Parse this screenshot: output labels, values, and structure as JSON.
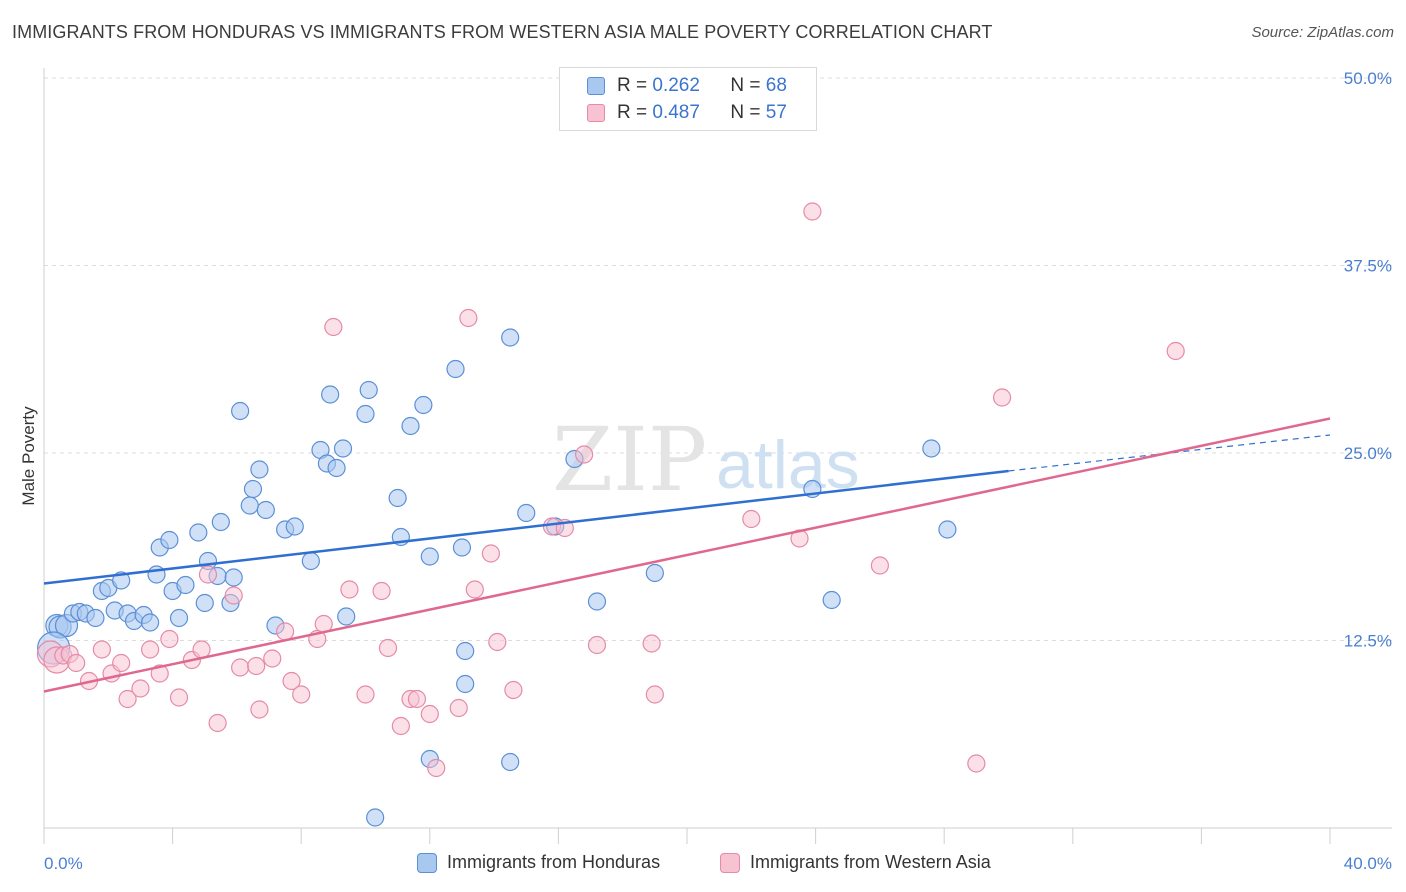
{
  "header": {
    "title": "IMMIGRANTS FROM HONDURAS VS IMMIGRANTS FROM WESTERN ASIA MALE POVERTY CORRELATION CHART",
    "source": "Source: ZipAtlas.com"
  },
  "watermark": {
    "zip": "ZIP",
    "atlas": "atlas"
  },
  "legend": {
    "rows": [
      {
        "r_label": "R =",
        "r_value": "0.262",
        "n_label": "N =",
        "n_value": "68"
      },
      {
        "r_label": "R =",
        "r_value": "0.487",
        "n_label": "N =",
        "n_value": "57"
      }
    ]
  },
  "bottom_legend": {
    "items": [
      {
        "label": "Immigrants from Honduras"
      },
      {
        "label": "Immigrants from Western Asia"
      }
    ]
  },
  "chart_data": {
    "type": "scatter",
    "title": "IMMIGRANTS FROM HONDURAS VS IMMIGRANTS FROM WESTERN ASIA MALE POVERTY CORRELATION CHART",
    "xlabel": "",
    "ylabel": "Male Poverty",
    "xlim": [
      0,
      40
    ],
    "ylim": [
      0,
      50
    ],
    "x_tick_labels": [
      "0.0%",
      "40.0%"
    ],
    "y_ticks": [
      12.5,
      25.0,
      37.5,
      50.0
    ],
    "y_tick_labels": [
      "12.5%",
      "25.0%",
      "37.5%",
      "50.0%"
    ],
    "grid": true,
    "legend_position": "top-center",
    "colors": {
      "honduras_fill": "#a9c8f0",
      "honduras_stroke": "#5b8fd6",
      "honduras_line": "#2f6fd0",
      "western_asia_fill": "#f7c2d2",
      "western_asia_stroke": "#e58aa8",
      "western_asia_line": "#e0688f",
      "tick_text": "#4a7fd0"
    },
    "series": [
      {
        "name": "Immigrants from Honduras",
        "r": 0.262,
        "n": 68,
        "trend": {
          "x": [
            0,
            30
          ],
          "y": [
            16.3,
            23.8
          ],
          "dashed_to": [
            40,
            26.2
          ]
        },
        "points": [
          [
            0.4,
            13.5
          ],
          [
            0.5,
            13.4
          ],
          [
            0.7,
            13.5
          ],
          [
            0.9,
            14.3
          ],
          [
            1.1,
            14.4
          ],
          [
            1.3,
            14.3
          ],
          [
            1.6,
            14.0
          ],
          [
            1.8,
            15.8
          ],
          [
            2.0,
            16.0
          ],
          [
            2.2,
            14.5
          ],
          [
            2.4,
            16.5
          ],
          [
            2.6,
            14.3
          ],
          [
            2.8,
            13.8
          ],
          [
            3.1,
            14.2
          ],
          [
            3.3,
            13.7
          ],
          [
            3.5,
            16.9
          ],
          [
            3.6,
            18.7
          ],
          [
            3.9,
            19.2
          ],
          [
            4.0,
            15.8
          ],
          [
            4.2,
            14.0
          ],
          [
            4.4,
            16.2
          ],
          [
            4.8,
            19.7
          ],
          [
            5.0,
            15.0
          ],
          [
            5.1,
            17.8
          ],
          [
            5.4,
            16.8
          ],
          [
            5.5,
            20.4
          ],
          [
            5.8,
            15.0
          ],
          [
            5.9,
            16.7
          ],
          [
            6.1,
            27.8
          ],
          [
            6.4,
            21.5
          ],
          [
            6.5,
            22.6
          ],
          [
            6.7,
            23.9
          ],
          [
            6.9,
            21.2
          ],
          [
            7.2,
            13.5
          ],
          [
            7.5,
            19.9
          ],
          [
            7.8,
            20.1
          ],
          [
            8.3,
            17.8
          ],
          [
            8.6,
            25.2
          ],
          [
            8.8,
            24.3
          ],
          [
            8.9,
            28.9
          ],
          [
            9.1,
            24.0
          ],
          [
            9.3,
            25.3
          ],
          [
            9.4,
            14.1
          ],
          [
            10.0,
            27.6
          ],
          [
            10.1,
            29.2
          ],
          [
            10.3,
            0.7
          ],
          [
            11.0,
            22.0
          ],
          [
            11.1,
            19.4
          ],
          [
            11.4,
            26.8
          ],
          [
            11.8,
            28.2
          ],
          [
            12.0,
            18.1
          ],
          [
            12.0,
            4.6
          ],
          [
            12.8,
            30.6
          ],
          [
            13.0,
            18.7
          ],
          [
            13.1,
            9.6
          ],
          [
            13.1,
            11.8
          ],
          [
            14.5,
            32.7
          ],
          [
            14.5,
            4.4
          ],
          [
            15.0,
            21.0
          ],
          [
            15.9,
            20.1
          ],
          [
            16.5,
            24.6
          ],
          [
            17.2,
            15.1
          ],
          [
            19.0,
            17.0
          ],
          [
            23.9,
            22.6
          ],
          [
            24.5,
            15.2
          ],
          [
            27.6,
            25.3
          ],
          [
            28.1,
            19.9
          ],
          [
            0.3,
            12.0
          ]
        ]
      },
      {
        "name": "Immigrants from Western Asia",
        "r": 0.487,
        "n": 57,
        "trend": {
          "x": [
            0,
            40
          ],
          "y": [
            9.1,
            27.3
          ]
        },
        "points": [
          [
            0.2,
            11.6
          ],
          [
            0.4,
            11.2
          ],
          [
            0.6,
            11.5
          ],
          [
            0.8,
            11.6
          ],
          [
            1.0,
            11.0
          ],
          [
            1.4,
            9.8
          ],
          [
            1.8,
            11.9
          ],
          [
            2.1,
            10.3
          ],
          [
            2.4,
            11.0
          ],
          [
            2.6,
            8.6
          ],
          [
            3.0,
            9.3
          ],
          [
            3.3,
            11.9
          ],
          [
            3.6,
            10.3
          ],
          [
            3.9,
            12.6
          ],
          [
            4.2,
            8.7
          ],
          [
            4.6,
            11.2
          ],
          [
            4.9,
            11.9
          ],
          [
            5.1,
            16.9
          ],
          [
            5.4,
            7.0
          ],
          [
            5.9,
            15.5
          ],
          [
            6.1,
            10.7
          ],
          [
            6.6,
            10.8
          ],
          [
            6.7,
            7.9
          ],
          [
            7.1,
            11.3
          ],
          [
            7.5,
            13.1
          ],
          [
            7.7,
            9.8
          ],
          [
            8.0,
            8.9
          ],
          [
            8.5,
            12.6
          ],
          [
            8.7,
            13.6
          ],
          [
            9.0,
            33.4
          ],
          [
            9.5,
            15.9
          ],
          [
            10.0,
            8.9
          ],
          [
            10.5,
            15.8
          ],
          [
            10.7,
            12.0
          ],
          [
            11.1,
            6.8
          ],
          [
            11.4,
            8.6
          ],
          [
            11.6,
            8.6
          ],
          [
            12.0,
            7.6
          ],
          [
            12.2,
            4.0
          ],
          [
            12.9,
            8.0
          ],
          [
            13.2,
            34.0
          ],
          [
            13.4,
            15.9
          ],
          [
            13.9,
            18.3
          ],
          [
            14.1,
            12.4
          ],
          [
            14.6,
            9.2
          ],
          [
            15.8,
            20.1
          ],
          [
            16.2,
            20.0
          ],
          [
            16.8,
            24.9
          ],
          [
            17.2,
            12.2
          ],
          [
            18.9,
            12.3
          ],
          [
            19.0,
            8.9
          ],
          [
            22.0,
            20.6
          ],
          [
            23.5,
            19.3
          ],
          [
            23.9,
            41.1
          ],
          [
            26.0,
            17.5
          ],
          [
            29.0,
            4.3
          ],
          [
            29.8,
            28.7
          ]
        ]
      }
    ],
    "extra_points_western_asia": [
      [
        35.2,
        31.8
      ]
    ]
  }
}
